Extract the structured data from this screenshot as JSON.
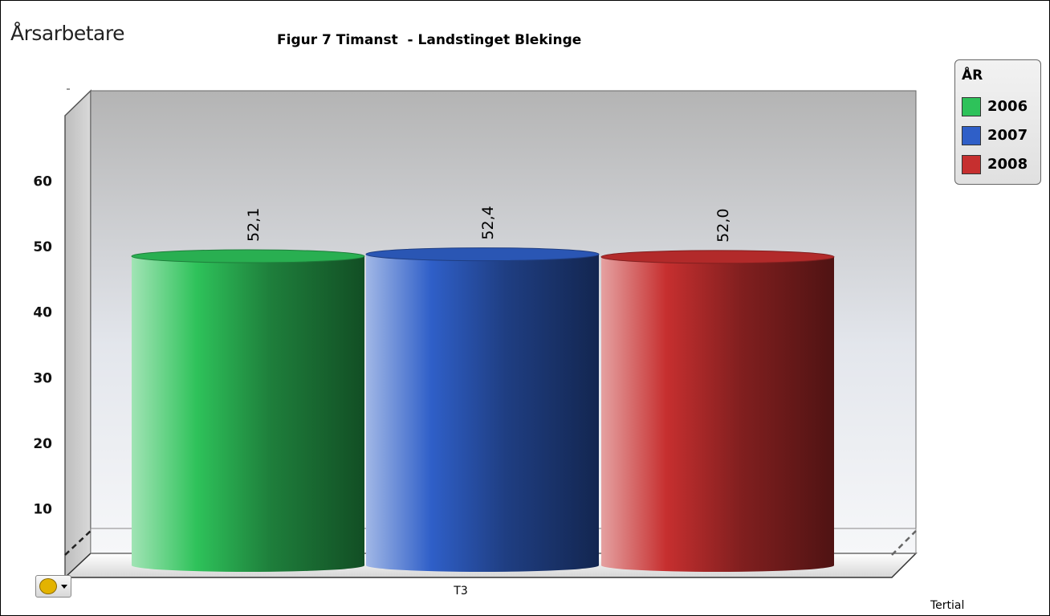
{
  "chart_data": {
    "type": "bar",
    "title": "Figur 7 Timanst  - Landstinget Blekinge",
    "ylabel": "Årsarbetare",
    "xlabel": "Tertial",
    "categories": [
      "T3"
    ],
    "series": [
      {
        "name": "2006",
        "values": [
          52.1
        ],
        "label": "52,1",
        "color": "#2ec25a"
      },
      {
        "name": "2007",
        "values": [
          52.4
        ],
        "label": "52,4",
        "color": "#2f5fc8"
      },
      {
        "name": "2008",
        "values": [
          52.0
        ],
        "label": "52,0",
        "color": "#c62f2f"
      }
    ],
    "ylim": [
      0,
      70
    ],
    "yticks": [
      "10",
      "20",
      "30",
      "40",
      "50",
      "60"
    ],
    "ytick_values": [
      10,
      20,
      30,
      40,
      50,
      60
    ],
    "legend": {
      "title": "ÅR",
      "placement": "top-right"
    },
    "grid": false,
    "style": "3d-cylinder"
  }
}
